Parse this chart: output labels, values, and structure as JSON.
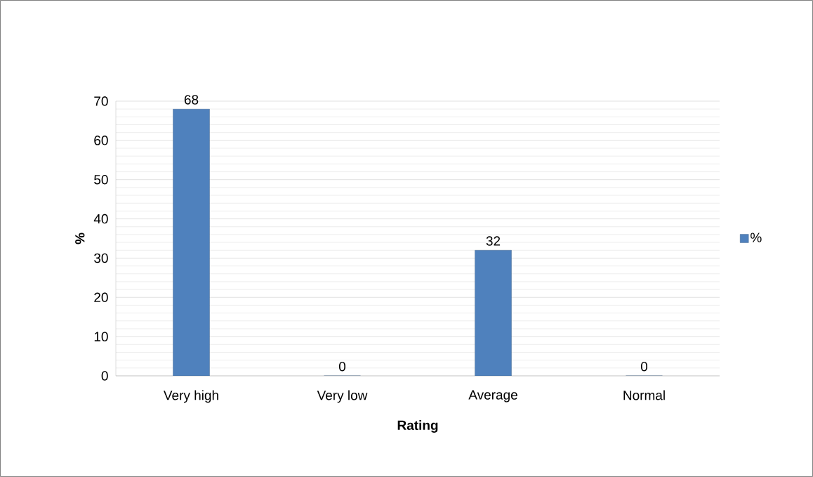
{
  "chart_data": {
    "type": "bar",
    "xlabel": "Rating",
    "ylabel": "%",
    "categories": [
      "Very high",
      "Very low",
      "Average",
      "Normal"
    ],
    "series": [
      {
        "name": "%",
        "color": "#4f81bd",
        "values": [
          68,
          0,
          32,
          0
        ]
      }
    ],
    "ylim": [
      0,
      70
    ],
    "yticks": [
      0,
      10,
      20,
      30,
      40,
      50,
      60,
      70
    ],
    "grid": "y",
    "legend": "right",
    "data_labels": true
  }
}
